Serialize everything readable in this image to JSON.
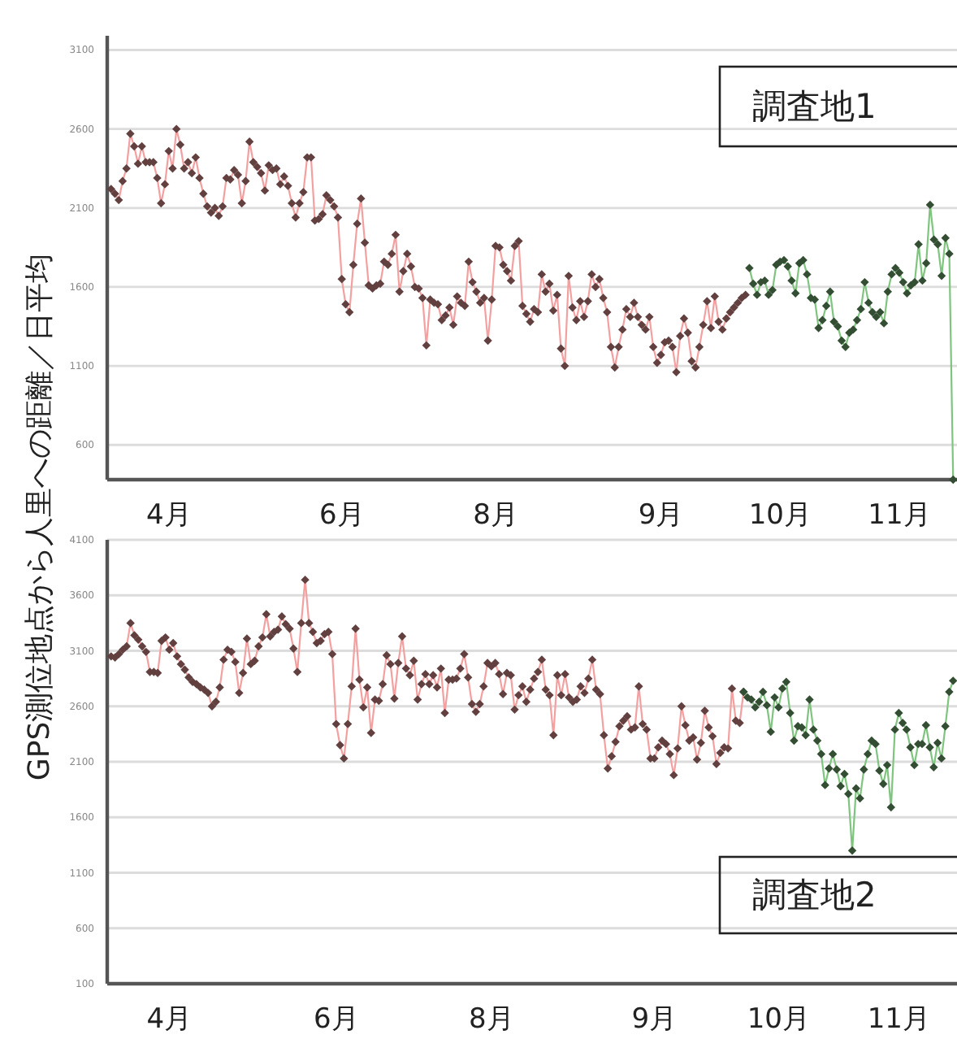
{
  "chart_data": [
    {
      "type": "line",
      "ylabel": "GPS測位地点から人里への距離／日平均",
      "annotations": [
        "調査地1"
      ],
      "ylim": [
        380,
        3190
      ],
      "yticks": [
        600,
        1100,
        1600,
        2100,
        2600,
        3100
      ],
      "grid": "y",
      "marker": "diamond",
      "line_style": "solid",
      "categories": [
        null,
        null,
        null,
        null,
        null,
        null,
        null,
        null,
        null,
        null,
        null,
        null,
        null,
        null,
        null,
        "4月",
        null,
        null,
        null,
        null,
        null,
        null,
        null,
        null,
        null,
        null,
        null,
        null,
        null,
        null,
        null,
        null,
        null,
        null,
        null,
        null,
        null,
        null,
        null,
        null,
        null,
        null,
        null,
        null,
        null,
        null,
        null,
        null,
        null,
        null,
        null,
        null,
        null,
        null,
        null,
        null,
        null,
        null,
        null,
        null,
        "6月",
        null,
        null,
        null,
        null,
        null,
        null,
        null,
        null,
        null,
        null,
        null,
        null,
        null,
        null,
        null,
        null,
        null,
        null,
        null,
        null,
        null,
        null,
        null,
        null,
        null,
        null,
        null,
        null,
        null,
        null,
        null,
        null,
        null,
        null,
        null,
        null,
        null,
        null,
        null,
        "8月",
        null,
        null,
        null,
        null,
        null,
        null,
        null,
        null,
        null,
        null,
        null,
        null,
        null,
        null,
        null,
        null,
        null,
        null,
        null,
        null,
        null,
        null,
        null,
        null,
        null,
        null,
        null,
        null,
        null,
        null,
        null,
        null,
        null,
        null,
        null,
        null,
        null,
        null,
        null,
        null,
        null,
        null,
        "9月",
        null,
        null,
        null,
        null,
        null,
        null,
        null,
        null,
        null,
        null,
        null,
        null,
        null,
        null,
        null,
        null,
        null,
        null,
        null,
        null,
        null,
        null,
        null,
        null,
        null,
        null,
        null,
        null,
        null,
        null,
        "10月",
        null,
        null,
        null,
        null,
        null,
        null,
        null,
        null,
        null,
        null,
        null,
        null,
        null,
        null,
        null,
        null,
        null,
        null,
        null,
        null,
        null,
        null,
        null,
        null,
        null,
        null,
        null,
        null,
        null,
        null,
        "11月",
        null,
        null,
        null,
        null,
        null,
        null,
        null,
        null,
        null,
        null,
        null,
        null,
        null,
        null
      ],
      "series": [
        {
          "color": "#f4a0a0",
          "values": [
            2220,
            2190,
            2150,
            2270,
            2350,
            2570,
            2490,
            2380,
            2490,
            2390,
            2390,
            2390,
            2290,
            2130,
            2250,
            2460,
            2350,
            2600,
            2500,
            2350,
            2390,
            2320,
            2420,
            2290,
            2190,
            2110,
            2070,
            2100,
            2050,
            2110,
            2290,
            2280,
            2340,
            2310,
            2130,
            2270,
            2520,
            2390,
            2360,
            2320,
            2210,
            2370,
            2340,
            2350,
            2250,
            2300,
            2240,
            2130,
            2040,
            2130,
            2200,
            2420,
            2420,
            2020,
            2030,
            2060,
            2180,
            2150,
            2110,
            2040,
            1650,
            1490,
            1440,
            1740,
            2000,
            2160,
            1880,
            1610,
            1590,
            1610,
            1620,
            1760,
            1740,
            1810,
            1930,
            1570,
            1700,
            1810,
            1730,
            1600,
            1590,
            1530,
            1230,
            1520,
            1500,
            1490,
            1390,
            1420,
            1470,
            1360,
            1540,
            1500,
            1480,
            1760,
            1630,
            1570,
            1500,
            1530,
            1260,
            1520,
            1860,
            1850,
            1740,
            1700,
            1640,
            1860,
            1890,
            1480,
            1430,
            1380,
            1460,
            1440,
            1680,
            1570,
            1620,
            1450,
            1550,
            1210,
            1100,
            1670,
            1470,
            1390,
            1510,
            1410,
            1510,
            1680,
            1600,
            1650,
            1530,
            1440,
            1220,
            1090,
            1220,
            1330,
            1460,
            1410,
            1500,
            1410,
            1360,
            1330,
            1410,
            1220,
            1120,
            1170,
            1250,
            1260,
            1220,
            1060,
            1290,
            1400,
            1310,
            1130,
            1090,
            1220,
            1360,
            1510,
            1340,
            1540,
            1380,
            1330,
            1400,
            1440,
            1470,
            1500,
            1530,
            1550,
            null,
            null,
            null,
            null,
            null,
            null,
            null,
            null,
            null,
            null,
            null,
            null,
            null,
            null,
            null,
            null,
            null,
            null,
            null,
            null,
            null,
            null,
            null,
            null,
            null,
            null,
            null,
            null,
            null,
            null,
            null,
            null,
            null,
            null,
            null,
            null,
            null,
            null,
            null,
            null,
            null,
            null,
            null,
            null,
            null,
            null,
            null,
            null,
            null,
            null,
            null,
            null,
            null,
            null
          ]
        },
        {
          "color": "#7fc47f",
          "values": [
            null,
            null,
            null,
            null,
            null,
            null,
            null,
            null,
            null,
            null,
            null,
            null,
            null,
            null,
            null,
            null,
            null,
            null,
            null,
            null,
            null,
            null,
            null,
            null,
            null,
            null,
            null,
            null,
            null,
            null,
            null,
            null,
            null,
            null,
            null,
            null,
            null,
            null,
            null,
            null,
            null,
            null,
            null,
            null,
            null,
            null,
            null,
            null,
            null,
            null,
            null,
            null,
            null,
            null,
            null,
            null,
            null,
            null,
            null,
            null,
            null,
            null,
            null,
            null,
            null,
            null,
            null,
            null,
            null,
            null,
            null,
            null,
            null,
            null,
            null,
            null,
            null,
            null,
            null,
            null,
            null,
            null,
            null,
            null,
            null,
            null,
            null,
            null,
            null,
            null,
            null,
            null,
            null,
            null,
            null,
            null,
            null,
            null,
            null,
            null,
            null,
            null,
            null,
            null,
            null,
            null,
            null,
            null,
            null,
            null,
            null,
            null,
            null,
            null,
            null,
            null,
            null,
            null,
            null,
            null,
            null,
            null,
            null,
            null,
            null,
            null,
            null,
            null,
            null,
            null,
            null,
            null,
            null,
            null,
            null,
            null,
            null,
            null,
            null,
            null,
            null,
            null,
            null,
            null,
            null,
            null,
            null,
            null,
            null,
            null,
            null,
            null,
            null,
            null,
            null,
            null,
            null,
            null,
            null,
            null,
            null,
            null,
            null,
            null,
            null,
            null,
            1720,
            1620,
            1550,
            1630,
            1640,
            1550,
            1580,
            1740,
            1760,
            1770,
            1730,
            1640,
            1560,
            1750,
            1770,
            1680,
            1530,
            1520,
            1340,
            1390,
            1480,
            1570,
            1380,
            1350,
            1260,
            1220,
            1310,
            1330,
            1390,
            1460,
            1630,
            1500,
            1440,
            1410,
            1440,
            1370,
            1570,
            1680,
            1720,
            1690,
            1630,
            1560,
            1610,
            1630,
            1870,
            1640,
            1750,
            2120,
            1900,
            1870,
            1670,
            1910,
            1810,
            380
          ]
        }
      ]
    },
    {
      "type": "line",
      "annotations": [
        "調査地2"
      ],
      "ylim": [
        100,
        4100
      ],
      "yticks": [
        100,
        600,
        1100,
        1600,
        2100,
        2600,
        3100,
        3600,
        4100
      ],
      "grid": "y",
      "marker": "diamond",
      "line_style": "solid",
      "categories": [
        null,
        null,
        null,
        null,
        null,
        null,
        null,
        null,
        null,
        null,
        null,
        null,
        null,
        null,
        null,
        "4月",
        null,
        null,
        null,
        null,
        null,
        null,
        null,
        null,
        null,
        null,
        null,
        null,
        null,
        null,
        null,
        null,
        null,
        null,
        null,
        null,
        null,
        null,
        null,
        null,
        null,
        null,
        null,
        null,
        null,
        null,
        null,
        null,
        null,
        null,
        null,
        null,
        null,
        null,
        null,
        null,
        null,
        null,
        "6月",
        null,
        null,
        null,
        null,
        null,
        null,
        null,
        null,
        null,
        null,
        null,
        null,
        null,
        null,
        null,
        null,
        null,
        null,
        null,
        null,
        null,
        null,
        null,
        null,
        null,
        null,
        null,
        null,
        null,
        null,
        null,
        null,
        null,
        null,
        null,
        null,
        null,
        null,
        null,
        "8月",
        null,
        null,
        null,
        null,
        null,
        null,
        null,
        null,
        null,
        null,
        null,
        null,
        null,
        null,
        null,
        null,
        null,
        null,
        null,
        null,
        null,
        null,
        null,
        null,
        null,
        null,
        null,
        null,
        null,
        null,
        null,
        null,
        null,
        null,
        null,
        null,
        null,
        null,
        null,
        null,
        null,
        "9月",
        null,
        null,
        null,
        null,
        null,
        null,
        null,
        null,
        null,
        null,
        null,
        null,
        null,
        null,
        null,
        null,
        null,
        null,
        null,
        null,
        null,
        null,
        null,
        null,
        null,
        null,
        null,
        null,
        null,
        null,
        null,
        "10月",
        null,
        null,
        null,
        null,
        null,
        null,
        null,
        null,
        null,
        null,
        null,
        null,
        null,
        null,
        null,
        null,
        null,
        null,
        null,
        null,
        null,
        null,
        null,
        null,
        null,
        null,
        null,
        null,
        null,
        null,
        "11月",
        null,
        null,
        null,
        null,
        null,
        null,
        null,
        null,
        null,
        null,
        null,
        null,
        null,
        null
      ],
      "series": [
        {
          "color": "#f4a0a0",
          "values": [
            3050,
            3040,
            3070,
            3110,
            3140,
            3350,
            3240,
            3200,
            3140,
            3090,
            2910,
            2910,
            2900,
            3190,
            3220,
            3110,
            3170,
            3050,
            2980,
            2930,
            2860,
            2820,
            2800,
            2770,
            2750,
            2720,
            2600,
            2640,
            2770,
            3020,
            3110,
            3090,
            3000,
            2720,
            2900,
            3210,
            2980,
            3010,
            3140,
            3220,
            3430,
            3230,
            3270,
            3290,
            3410,
            3340,
            3300,
            3120,
            2910,
            3350,
            3740,
            3350,
            3270,
            3170,
            3190,
            3250,
            3270,
            3070,
            2440,
            2250,
            2130,
            2440,
            2780,
            3300,
            2840,
            2590,
            2770,
            2360,
            2660,
            2650,
            2800,
            3060,
            2980,
            2670,
            2990,
            3230,
            2940,
            2880,
            3010,
            2660,
            2800,
            2890,
            2800,
            2880,
            2770,
            2940,
            2540,
            2840,
            2840,
            2850,
            2940,
            3070,
            2860,
            2620,
            2550,
            2620,
            2780,
            2990,
            2960,
            2990,
            2890,
            2710,
            2900,
            2880,
            2570,
            2700,
            2780,
            2640,
            2750,
            2850,
            2910,
            3020,
            2750,
            2700,
            2340,
            2880,
            2700,
            2890,
            2680,
            2640,
            2660,
            2780,
            2720,
            2850,
            3020,
            2750,
            2710,
            2340,
            2040,
            2150,
            2280,
            2420,
            2470,
            2510,
            2390,
            2410,
            2780,
            2440,
            2390,
            2130,
            2130,
            2230,
            2290,
            2260,
            2170,
            1980,
            2220,
            2600,
            2430,
            2290,
            2320,
            2120,
            2270,
            2560,
            2410,
            2330,
            2080,
            2180,
            2230,
            2220,
            2760,
            2470,
            2450,
            2730,
            null,
            null,
            null,
            null,
            null,
            null,
            null,
            null,
            null,
            null,
            null,
            null,
            null,
            null,
            null,
            null,
            null,
            null,
            null,
            null,
            null,
            null,
            null,
            null,
            null,
            null,
            null,
            null,
            null,
            null,
            null,
            null,
            null,
            null,
            null,
            null,
            null,
            null,
            null,
            null,
            null,
            null,
            null,
            null,
            null,
            null,
            null,
            null,
            null,
            null,
            null,
            null,
            null,
            null
          ]
        },
        {
          "color": "#7fc47f",
          "values": [
            null,
            null,
            null,
            null,
            null,
            null,
            null,
            null,
            null,
            null,
            null,
            null,
            null,
            null,
            null,
            null,
            null,
            null,
            null,
            null,
            null,
            null,
            null,
            null,
            null,
            null,
            null,
            null,
            null,
            null,
            null,
            null,
            null,
            null,
            null,
            null,
            null,
            null,
            null,
            null,
            null,
            null,
            null,
            null,
            null,
            null,
            null,
            null,
            null,
            null,
            null,
            null,
            null,
            null,
            null,
            null,
            null,
            null,
            null,
            null,
            null,
            null,
            null,
            null,
            null,
            null,
            null,
            null,
            null,
            null,
            null,
            null,
            null,
            null,
            null,
            null,
            null,
            null,
            null,
            null,
            null,
            null,
            null,
            null,
            null,
            null,
            null,
            null,
            null,
            null,
            null,
            null,
            null,
            null,
            null,
            null,
            null,
            null,
            null,
            null,
            null,
            null,
            null,
            null,
            null,
            null,
            null,
            null,
            null,
            null,
            null,
            null,
            null,
            null,
            null,
            null,
            null,
            null,
            null,
            null,
            null,
            null,
            null,
            null,
            null,
            null,
            null,
            null,
            null,
            null,
            null,
            null,
            null,
            null,
            null,
            null,
            null,
            null,
            null,
            null,
            null,
            null,
            null,
            null,
            null,
            null,
            null,
            null,
            null,
            null,
            null,
            null,
            null,
            null,
            null,
            null,
            null,
            null,
            null,
            null,
            null,
            null,
            null,
            2730,
            2680,
            2660,
            2590,
            2640,
            2730,
            2610,
            2370,
            2680,
            2590,
            2760,
            2820,
            2540,
            2290,
            2420,
            2410,
            2340,
            2660,
            2390,
            2290,
            2170,
            1890,
            2040,
            2170,
            2030,
            1880,
            1990,
            1810,
            1300,
            1860,
            1770,
            2030,
            2170,
            2290,
            2260,
            2020,
            1900,
            2070,
            1690,
            2390,
            2540,
            2450,
            2390,
            2230,
            2070,
            2260,
            2260,
            2430,
            2230,
            2050,
            2270,
            2130,
            2420,
            2730,
            2830
          ]
        }
      ]
    }
  ]
}
